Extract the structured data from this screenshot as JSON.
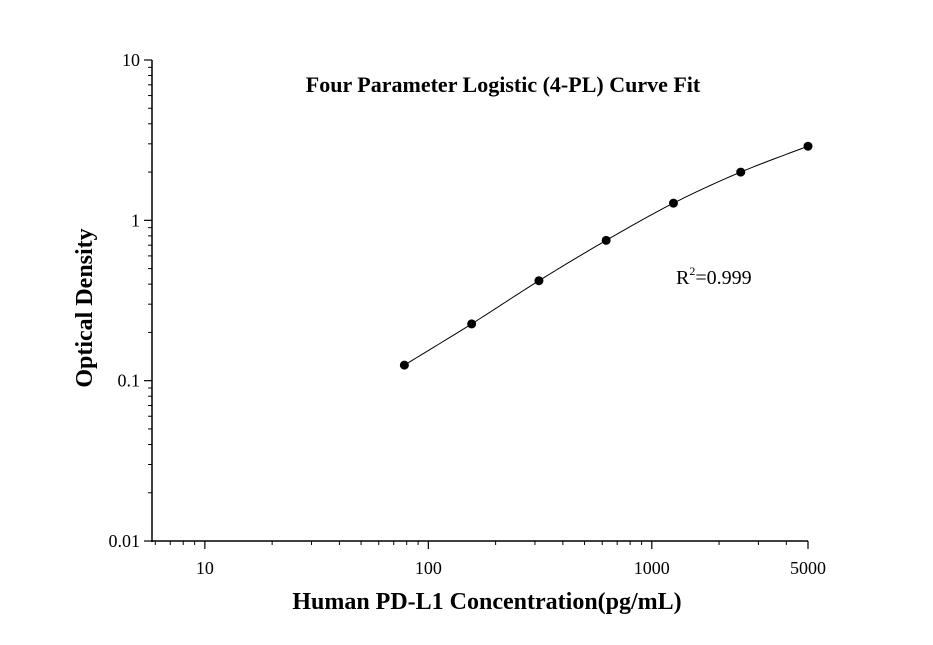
{
  "chart_data": {
    "type": "scatter",
    "title": "Four Parameter Logistic (4-PL) Curve Fit",
    "xlabel": "Human PD-L1 Concentration(pg/mL)",
    "ylabel": "Optical Density",
    "xscale": "log",
    "yscale": "log",
    "xlim": [
      5.8,
      5000
    ],
    "ylim": [
      0.01,
      10
    ],
    "x_ticks": [
      {
        "value": 10,
        "label": "10"
      },
      {
        "value": 100,
        "label": "100"
      },
      {
        "value": 1000,
        "label": "1000"
      },
      {
        "value": 5000,
        "label": "5000"
      }
    ],
    "y_ticks": [
      {
        "value": 0.01,
        "label": "0.01"
      },
      {
        "value": 0.1,
        "label": "0.1"
      },
      {
        "value": 1,
        "label": "1"
      },
      {
        "value": 10,
        "label": "10"
      }
    ],
    "series": [
      {
        "x": [
          78.125,
          156.25,
          312.5,
          625,
          1250,
          2500,
          5000
        ],
        "y": [
          0.125,
          0.226,
          0.42,
          0.75,
          1.28,
          2.0,
          2.9
        ]
      }
    ],
    "annotation": {
      "base": "R",
      "sup": "2",
      "rest": "=0.999"
    },
    "grid": false,
    "legend": "none"
  }
}
